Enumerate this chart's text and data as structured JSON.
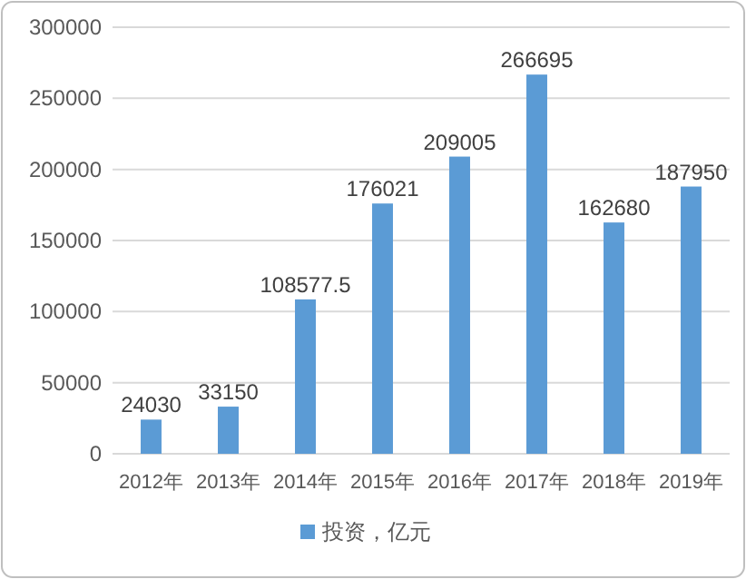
{
  "chart_data": {
    "type": "bar",
    "categories": [
      "2012年",
      "2013年",
      "2014年",
      "2015年",
      "2016年",
      "2017年",
      "2018年",
      "2019年"
    ],
    "series": [
      {
        "name": "投资，亿元",
        "color": "#5b9bd5",
        "values": [
          24030,
          33150,
          108577.5,
          176021,
          209005,
          266695,
          162680,
          187950
        ]
      }
    ],
    "ylim": [
      0,
      300000
    ],
    "yticks": [
      0,
      50000,
      100000,
      150000,
      200000,
      250000,
      300000
    ],
    "grid": "y",
    "legend": "bottom",
    "data_labels": true
  }
}
